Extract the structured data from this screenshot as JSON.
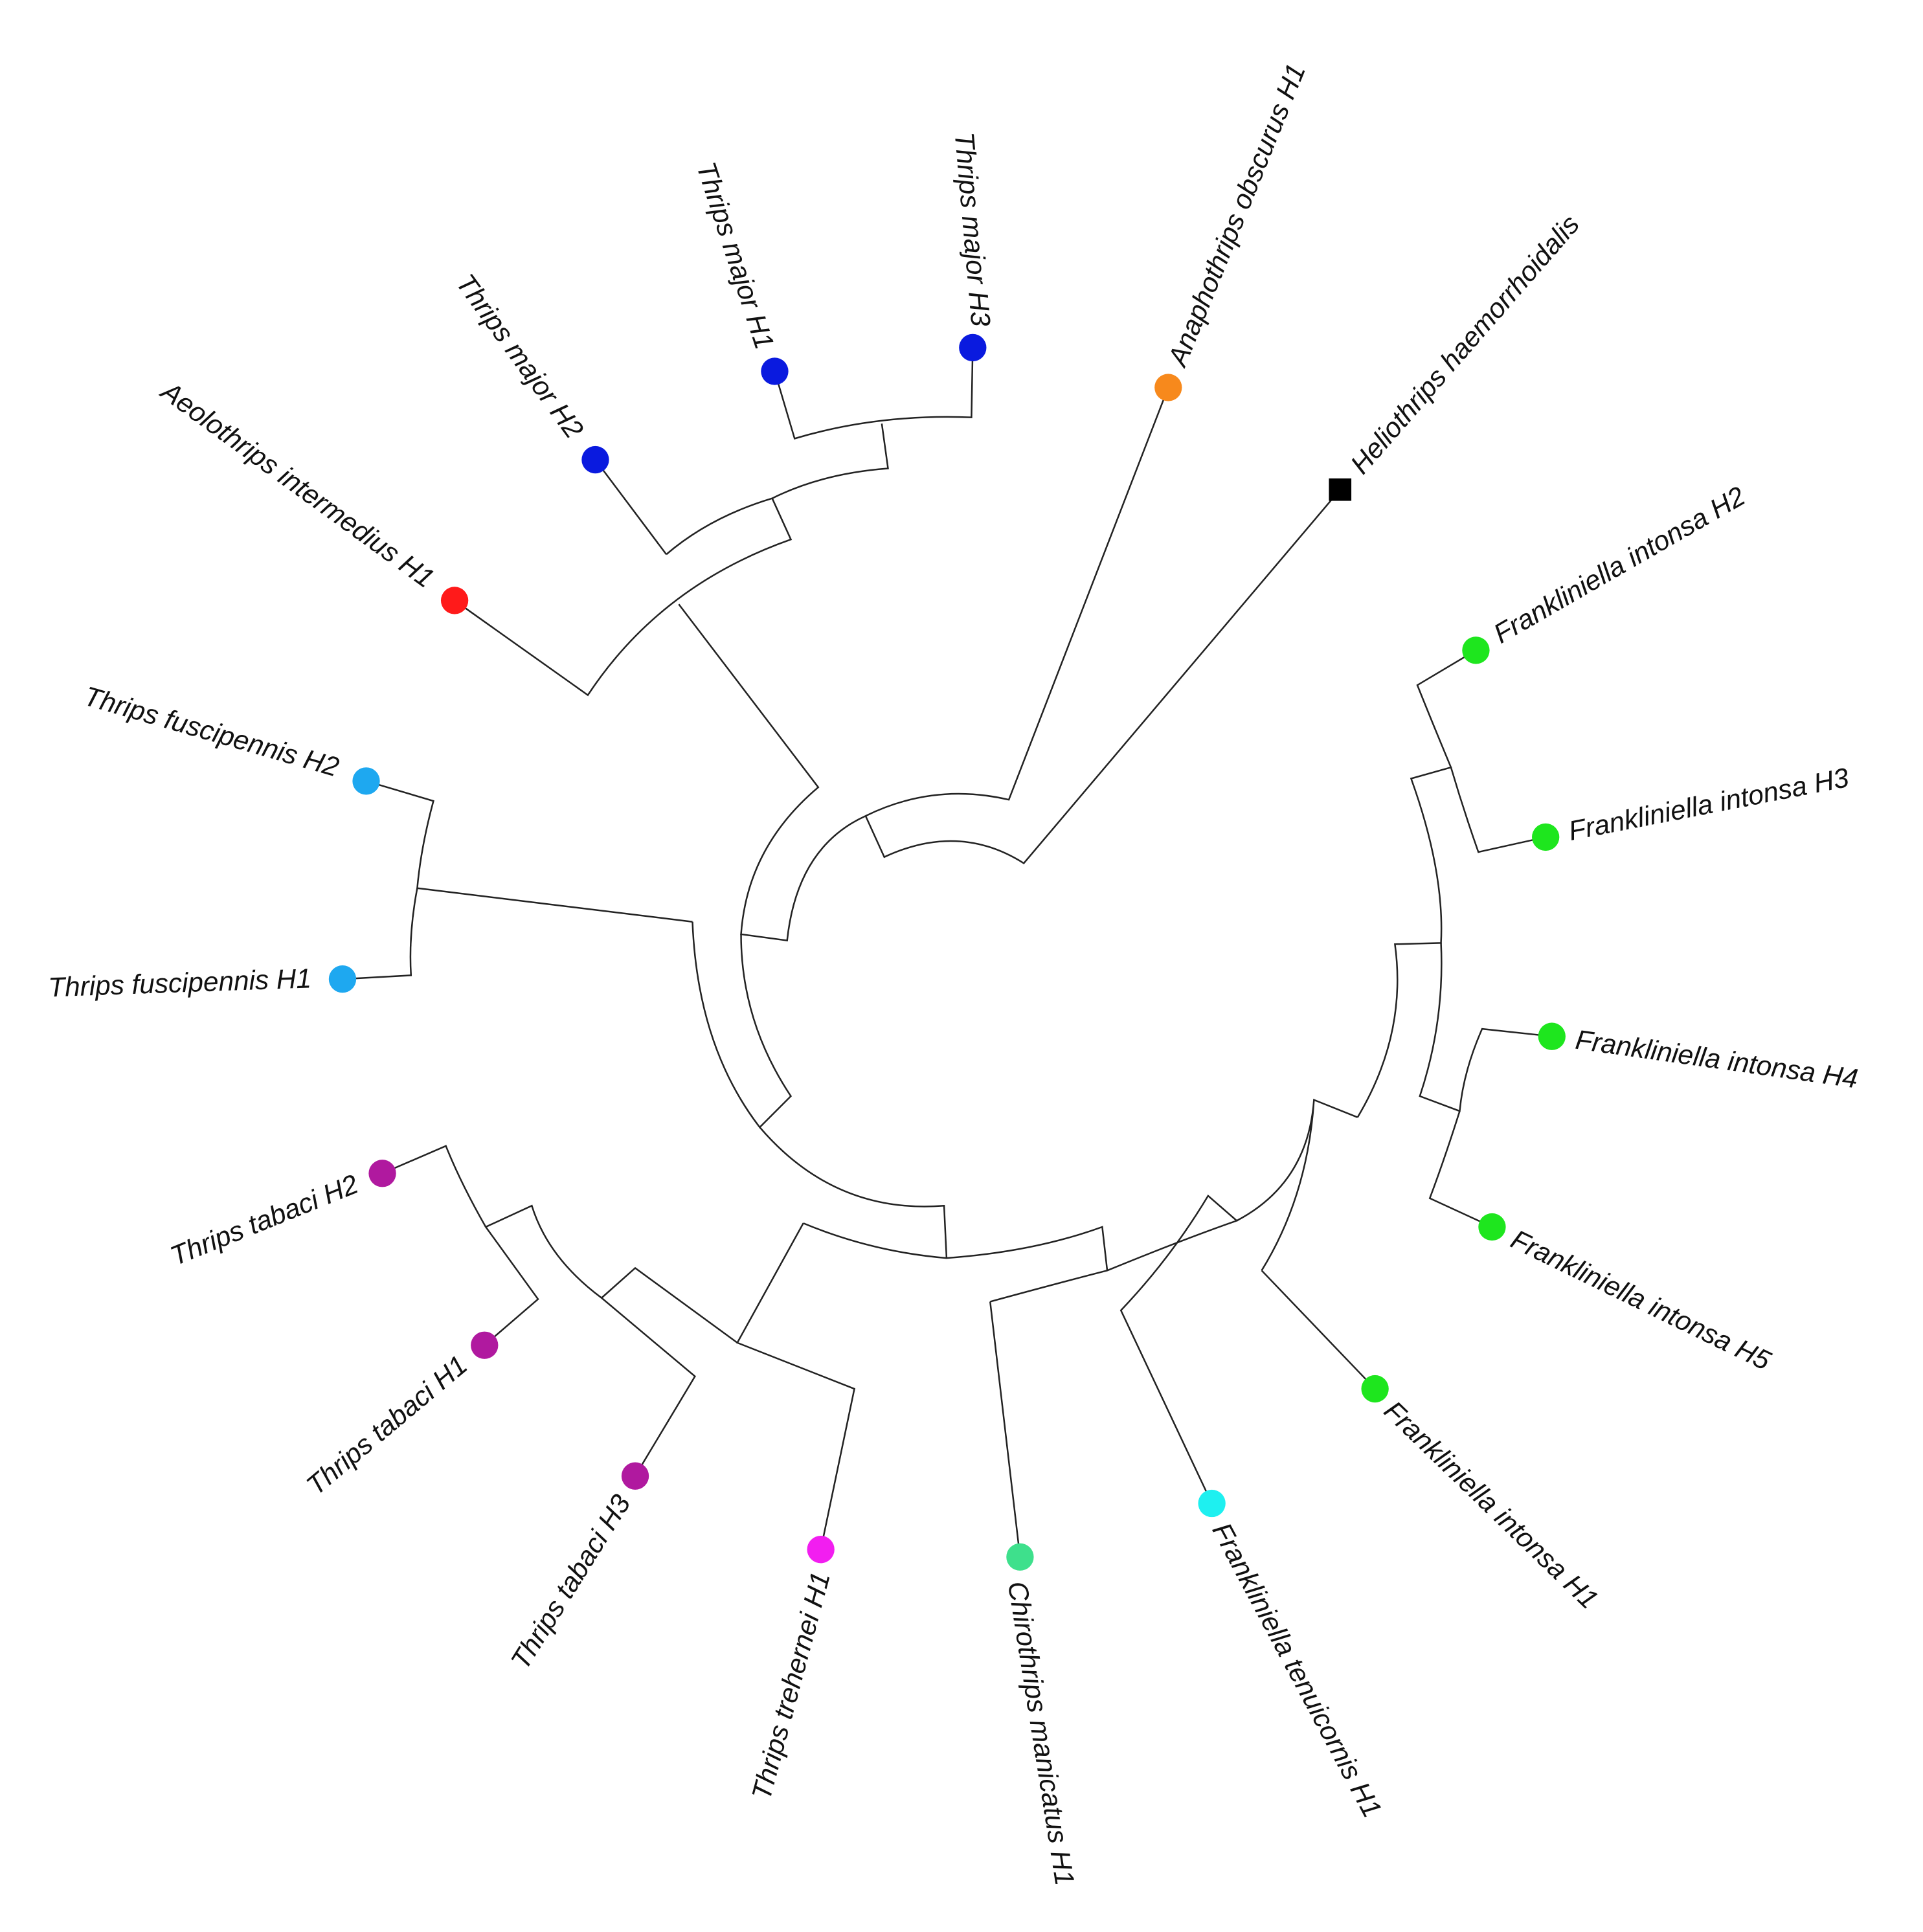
{
  "tree": {
    "leaves": [
      {
        "label": "Aeolothrips intermedius H1",
        "color": "#ff1a1a",
        "marker": "circle"
      },
      {
        "label": "Thrips major H2",
        "color": "#0a1adf",
        "marker": "circle"
      },
      {
        "label": "Thrips major H1",
        "color": "#0a1adf",
        "marker": "circle"
      },
      {
        "label": "Thrips major H3",
        "color": "#0a1adf",
        "marker": "circle"
      },
      {
        "label": "Anaphothrips obscurus H1",
        "color": "#f7891c",
        "marker": "circle"
      },
      {
        "label": "Heliothrips haemorrhoidalis",
        "color": "#000000",
        "marker": "square"
      },
      {
        "label": "Frankliniella intonsa H2",
        "color": "#1ee61e",
        "marker": "circle"
      },
      {
        "label": "Frankliniella intonsa H3",
        "color": "#1ee61e",
        "marker": "circle"
      },
      {
        "label": "Frankliniella intonsa H4",
        "color": "#1ee61e",
        "marker": "circle"
      },
      {
        "label": "Frankliniella intonsa H5",
        "color": "#1ee61e",
        "marker": "circle"
      },
      {
        "label": "Frankliniella intonsa H1",
        "color": "#1ee61e",
        "marker": "circle"
      },
      {
        "label": "Frankliniella tenuicornis H1",
        "color": "#1ef0f0",
        "marker": "circle"
      },
      {
        "label": "Chirothrips manicatus H1",
        "color": "#3ee08c",
        "marker": "circle"
      },
      {
        "label": "Thrips trehernei H1",
        "color": "#f21ef0",
        "marker": "circle"
      },
      {
        "label": "Thrips tabaci H3",
        "color": "#b0199f",
        "marker": "circle"
      },
      {
        "label": "Thrips tabaci H1",
        "color": "#b0199f",
        "marker": "circle"
      },
      {
        "label": "Thrips tabaci H2",
        "color": "#b0199f",
        "marker": "circle"
      },
      {
        "label": "Thrips fuscipennis H1",
        "color": "#1ea8f0",
        "marker": "circle"
      },
      {
        "label": "Thrips fuscipennis H2",
        "color": "#1ea8f0",
        "marker": "circle"
      }
    ]
  }
}
